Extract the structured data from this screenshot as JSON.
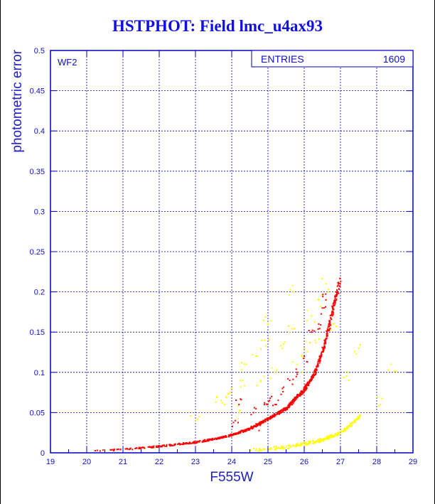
{
  "chart_data": {
    "type": "scatter",
    "title": "HSTPHOT: Field lmc_u4ax93",
    "xlabel": "F555W",
    "ylabel": "photometric error",
    "panel_label": "WF2",
    "stats_box": {
      "label": "ENTRIES",
      "value": "1609"
    },
    "xlim": [
      19,
      29
    ],
    "ylim": [
      0,
      0.5
    ],
    "x_ticks": [
      "19",
      "20",
      "21",
      "22",
      "23",
      "24",
      "25",
      "26",
      "27",
      "28",
      "29"
    ],
    "y_ticks": [
      "0",
      "0.05",
      "0.1",
      "0.15",
      "0.2",
      "0.25",
      "0.3",
      "0.35",
      "0.4",
      "0.45",
      "0.5"
    ],
    "grid": true,
    "colors": {
      "axes": "#0000c0",
      "grid": "#0000c0",
      "main": "#ff0000",
      "secondary": "#ffff00"
    },
    "series": [
      {
        "color": "#ff0000",
        "trend": [
          [
            20.0,
            0.002
          ],
          [
            21.0,
            0.004
          ],
          [
            22.0,
            0.008
          ],
          [
            23.0,
            0.013
          ],
          [
            23.5,
            0.017
          ],
          [
            24.0,
            0.022
          ],
          [
            24.5,
            0.03
          ],
          [
            25.0,
            0.042
          ],
          [
            25.5,
            0.055
          ],
          [
            26.0,
            0.078
          ],
          [
            26.3,
            0.1
          ],
          [
            26.5,
            0.125
          ],
          [
            26.7,
            0.16
          ],
          [
            26.85,
            0.19
          ],
          [
            27.0,
            0.215
          ]
        ],
        "scatter_points": [
          [
            24.1,
            0.04
          ],
          [
            24.2,
            0.06
          ],
          [
            24.6,
            0.05
          ],
          [
            24.9,
            0.06
          ],
          [
            25.1,
            0.07
          ],
          [
            25.4,
            0.08
          ],
          [
            25.6,
            0.09
          ],
          [
            25.8,
            0.1
          ],
          [
            26.0,
            0.12
          ],
          [
            26.2,
            0.15
          ],
          [
            26.4,
            0.16
          ],
          [
            26.6,
            0.19
          ],
          [
            26.5,
            0.18
          ],
          [
            24.7,
            0.035
          ],
          [
            25.2,
            0.06
          ]
        ]
      },
      {
        "color": "#ffff00",
        "trend": [
          [
            24.5,
            0.003
          ],
          [
            25.0,
            0.005
          ],
          [
            25.5,
            0.007
          ],
          [
            26.0,
            0.011
          ],
          [
            26.5,
            0.016
          ],
          [
            27.0,
            0.025
          ],
          [
            27.3,
            0.035
          ],
          [
            27.6,
            0.048
          ]
        ],
        "scatter_points": [
          [
            23.0,
            0.04
          ],
          [
            23.6,
            0.07
          ],
          [
            24.0,
            0.08
          ],
          [
            24.3,
            0.09
          ],
          [
            24.4,
            0.11
          ],
          [
            24.7,
            0.12
          ],
          [
            24.9,
            0.14
          ],
          [
            25.2,
            0.1
          ],
          [
            25.4,
            0.13
          ],
          [
            25.6,
            0.15
          ],
          [
            25.8,
            0.11
          ],
          [
            26.0,
            0.13
          ],
          [
            26.2,
            0.17
          ],
          [
            26.4,
            0.19
          ],
          [
            26.6,
            0.21
          ],
          [
            25.7,
            0.2
          ],
          [
            26.8,
            0.16
          ],
          [
            27.2,
            0.1
          ],
          [
            28.1,
            0.06
          ],
          [
            28.4,
            0.11
          ],
          [
            24.2,
            0.05
          ],
          [
            24.8,
            0.09
          ],
          [
            25.0,
            0.16
          ],
          [
            23.8,
            0.06
          ],
          [
            26.3,
            0.14
          ],
          [
            27.5,
            0.13
          ]
        ]
      }
    ]
  }
}
